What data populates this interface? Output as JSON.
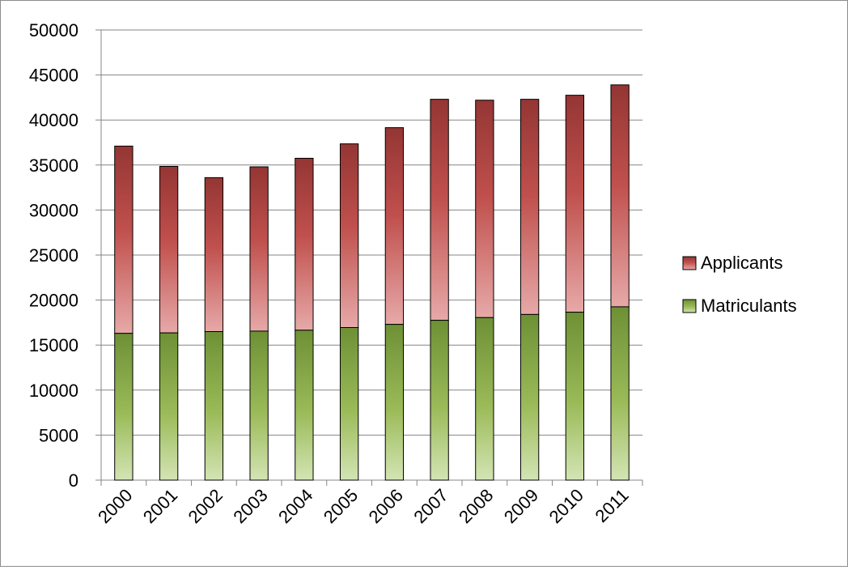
{
  "chart_data": {
    "type": "bar",
    "stacked": true,
    "title": "",
    "xlabel": "",
    "ylabel": "",
    "categories": [
      "2000",
      "2001",
      "2002",
      "2003",
      "2004",
      "2005",
      "2006",
      "2007",
      "2008",
      "2009",
      "2010",
      "2011"
    ],
    "series": [
      {
        "name": "Matriculants",
        "stack_top": [
          16300,
          16350,
          16500,
          16550,
          16650,
          16950,
          17300,
          17750,
          18050,
          18400,
          18650,
          19250
        ]
      },
      {
        "name": "Applicants",
        "stack_top": [
          37100,
          34850,
          33600,
          34800,
          35750,
          37350,
          39150,
          42300,
          42200,
          42300,
          42750,
          43900
        ]
      }
    ],
    "ylim": [
      0,
      50000
    ],
    "yticks": [
      "0",
      "5000",
      "10000",
      "15000",
      "20000",
      "25000",
      "30000",
      "35000",
      "40000",
      "45000",
      "50000"
    ],
    "grid": true,
    "legend_position": "right",
    "colors": {
      "applicants_top": "#943634",
      "applicants_mid": "#c0504d",
      "applicants_bottom": "#e6a9a8",
      "matriculants_top": "#6e9035",
      "matriculants_mid": "#9bbb59",
      "matriculants_bottom": "#d3e4b4",
      "gridline": "#868686",
      "bar_border": "#000000"
    }
  }
}
